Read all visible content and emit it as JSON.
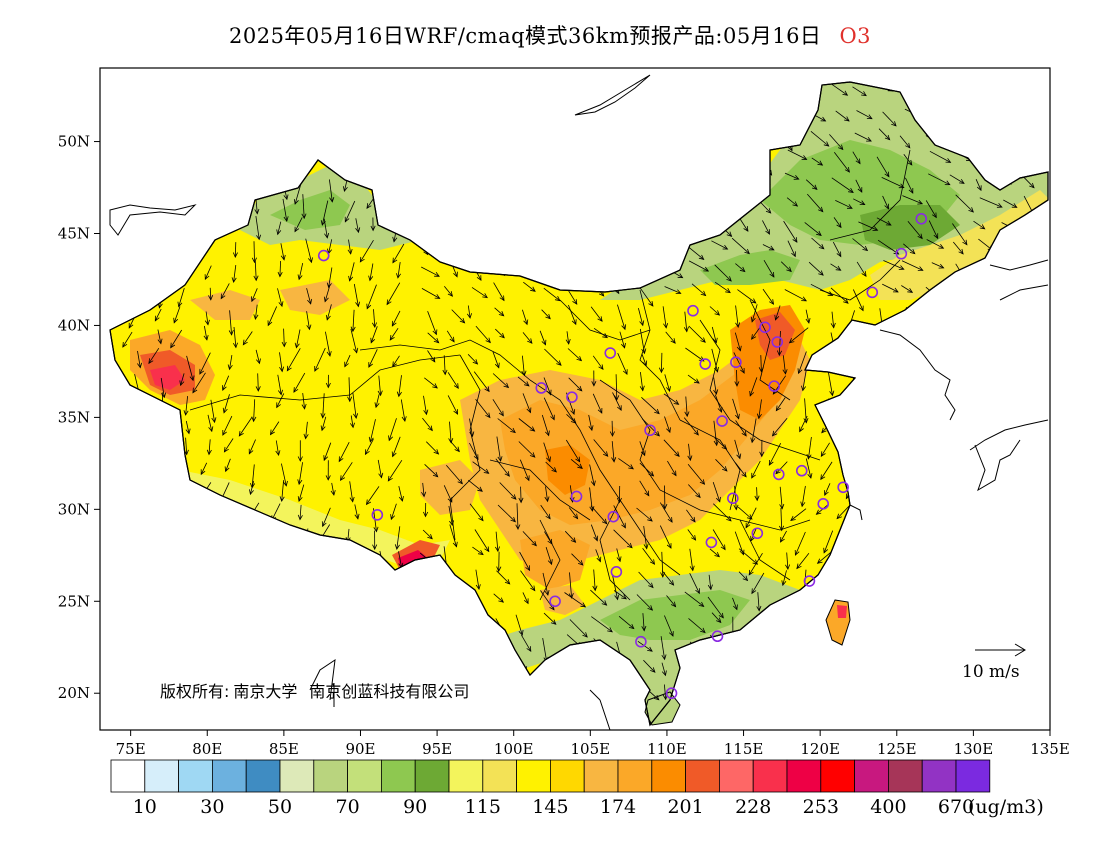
{
  "title": {
    "main": "2025年05月16日WRF/cmaq模式36km预报产品:05月16日",
    "species": "O3"
  },
  "axes": {
    "lat_labels": [
      "50N",
      "45N",
      "40N",
      "35N",
      "30N",
      "25N",
      "20N"
    ],
    "lat_values": [
      50,
      45,
      40,
      35,
      30,
      25,
      20
    ],
    "lon_labels": [
      "75E",
      "80E",
      "85E",
      "90E",
      "95E",
      "100E",
      "105E",
      "110E",
      "115E",
      "120E",
      "125E",
      "130E",
      "135E"
    ],
    "lon_values": [
      75,
      80,
      85,
      90,
      95,
      100,
      105,
      110,
      115,
      120,
      125,
      130,
      135
    ],
    "lon_range": [
      73,
      135
    ],
    "lat_range": [
      18,
      54
    ]
  },
  "credit": {
    "prefix": "版权所有:",
    "org1": "南京大学",
    "org2": "南京创蓝科技有限公司"
  },
  "wind_key": {
    "label": "10 m/s"
  },
  "colorbar": {
    "colors": [
      "#ffffff",
      "#d6eefa",
      "#9fd8f3",
      "#6cb1df",
      "#3f8cc2",
      "#dde9b8",
      "#b9d47e",
      "#c3e07a",
      "#8ec850",
      "#6da934",
      "#f3f45c",
      "#f3e256",
      "#fff200",
      "#ffd800",
      "#f8b641",
      "#fba828",
      "#fb8c00",
      "#f05a28",
      "#fe6766",
      "#f9304c",
      "#ee0045",
      "#ff0000",
      "#c8187f",
      "#a63558",
      "#9233c4",
      "#7b2ae0"
    ],
    "labels": [
      "10",
      "30",
      "50",
      "70",
      "90",
      "115",
      "145",
      "174",
      "201",
      "228",
      "253",
      "400",
      "670"
    ],
    "unit": "(ug/m3)"
  },
  "stations": [
    {
      "lon": 87.6,
      "lat": 43.8
    },
    {
      "lon": 91.1,
      "lat": 29.7
    },
    {
      "lon": 101.8,
      "lat": 36.6
    },
    {
      "lon": 103.8,
      "lat": 36.1
    },
    {
      "lon": 106.3,
      "lat": 38.5
    },
    {
      "lon": 111.7,
      "lat": 40.8
    },
    {
      "lon": 116.4,
      "lat": 39.9
    },
    {
      "lon": 117.2,
      "lat": 39.1
    },
    {
      "lon": 114.5,
      "lat": 38.0
    },
    {
      "lon": 112.5,
      "lat": 37.9
    },
    {
      "lon": 117.0,
      "lat": 36.7
    },
    {
      "lon": 113.6,
      "lat": 34.8
    },
    {
      "lon": 108.9,
      "lat": 34.3
    },
    {
      "lon": 104.1,
      "lat": 30.7
    },
    {
      "lon": 106.5,
      "lat": 29.6
    },
    {
      "lon": 106.7,
      "lat": 26.6
    },
    {
      "lon": 102.7,
      "lat": 25.0
    },
    {
      "lon": 108.3,
      "lat": 22.8
    },
    {
      "lon": 110.3,
      "lat": 20.0
    },
    {
      "lon": 113.3,
      "lat": 23.1
    },
    {
      "lon": 112.9,
      "lat": 28.2
    },
    {
      "lon": 114.3,
      "lat": 30.6
    },
    {
      "lon": 115.9,
      "lat": 28.7
    },
    {
      "lon": 117.3,
      "lat": 31.9
    },
    {
      "lon": 118.8,
      "lat": 32.1
    },
    {
      "lon": 120.2,
      "lat": 30.3
    },
    {
      "lon": 121.5,
      "lat": 31.2
    },
    {
      "lon": 119.3,
      "lat": 26.1
    },
    {
      "lon": 123.4,
      "lat": 41.8
    },
    {
      "lon": 125.3,
      "lat": 43.9
    },
    {
      "lon": 126.6,
      "lat": 45.8
    }
  ]
}
